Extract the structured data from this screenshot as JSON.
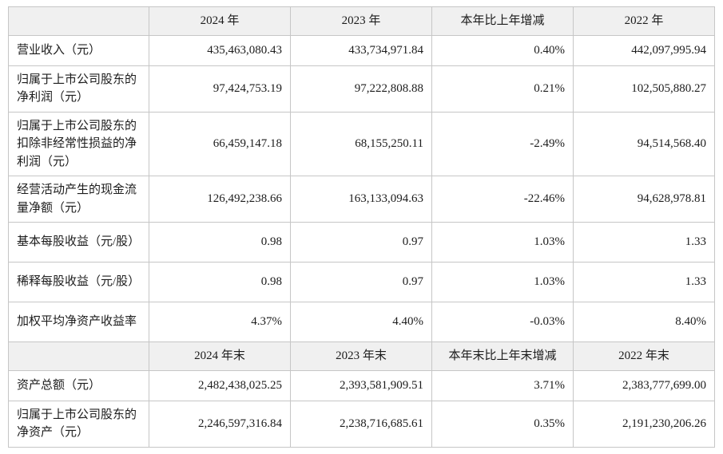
{
  "table": {
    "section1": {
      "headers": [
        "",
        "2024 年",
        "2023 年",
        "本年比上年增减",
        "2022 年"
      ],
      "rows": [
        {
          "label": "营业收入（元）",
          "values": [
            "435,463,080.43",
            "433,734,971.84",
            "0.40%",
            "442,097,995.94"
          ]
        },
        {
          "label": "归属于上市公司股东的净利润（元）",
          "values": [
            "97,424,753.19",
            "97,222,808.88",
            "0.21%",
            "102,505,880.27"
          ]
        },
        {
          "label": "归属于上市公司股东的扣除非经常性损益的净利润（元）",
          "values": [
            "66,459,147.18",
            "68,155,250.11",
            "-2.49%",
            "94,514,568.40"
          ]
        },
        {
          "label": "经营活动产生的现金流量净额（元）",
          "values": [
            "126,492,238.66",
            "163,133,094.63",
            "-22.46%",
            "94,628,978.81"
          ]
        },
        {
          "label": "基本每股收益（元/股）",
          "values": [
            "0.98",
            "0.97",
            "1.03%",
            "1.33"
          ]
        },
        {
          "label": "稀释每股收益（元/股）",
          "values": [
            "0.98",
            "0.97",
            "1.03%",
            "1.33"
          ]
        },
        {
          "label": "加权平均净资产收益率",
          "values": [
            "4.37%",
            "4.40%",
            "-0.03%",
            "8.40%"
          ]
        }
      ]
    },
    "section2": {
      "headers": [
        "",
        "2024 年末",
        "2023 年末",
        "本年末比上年末增减",
        "2022 年末"
      ],
      "rows": [
        {
          "label": "资产总额（元）",
          "values": [
            "2,482,438,025.25",
            "2,393,581,909.51",
            "3.71%",
            "2,383,777,699.00"
          ]
        },
        {
          "label": "归属于上市公司股东的净资产（元）",
          "values": [
            "2,246,597,316.84",
            "2,238,716,685.61",
            "0.35%",
            "2,191,230,206.26"
          ]
        }
      ]
    }
  }
}
